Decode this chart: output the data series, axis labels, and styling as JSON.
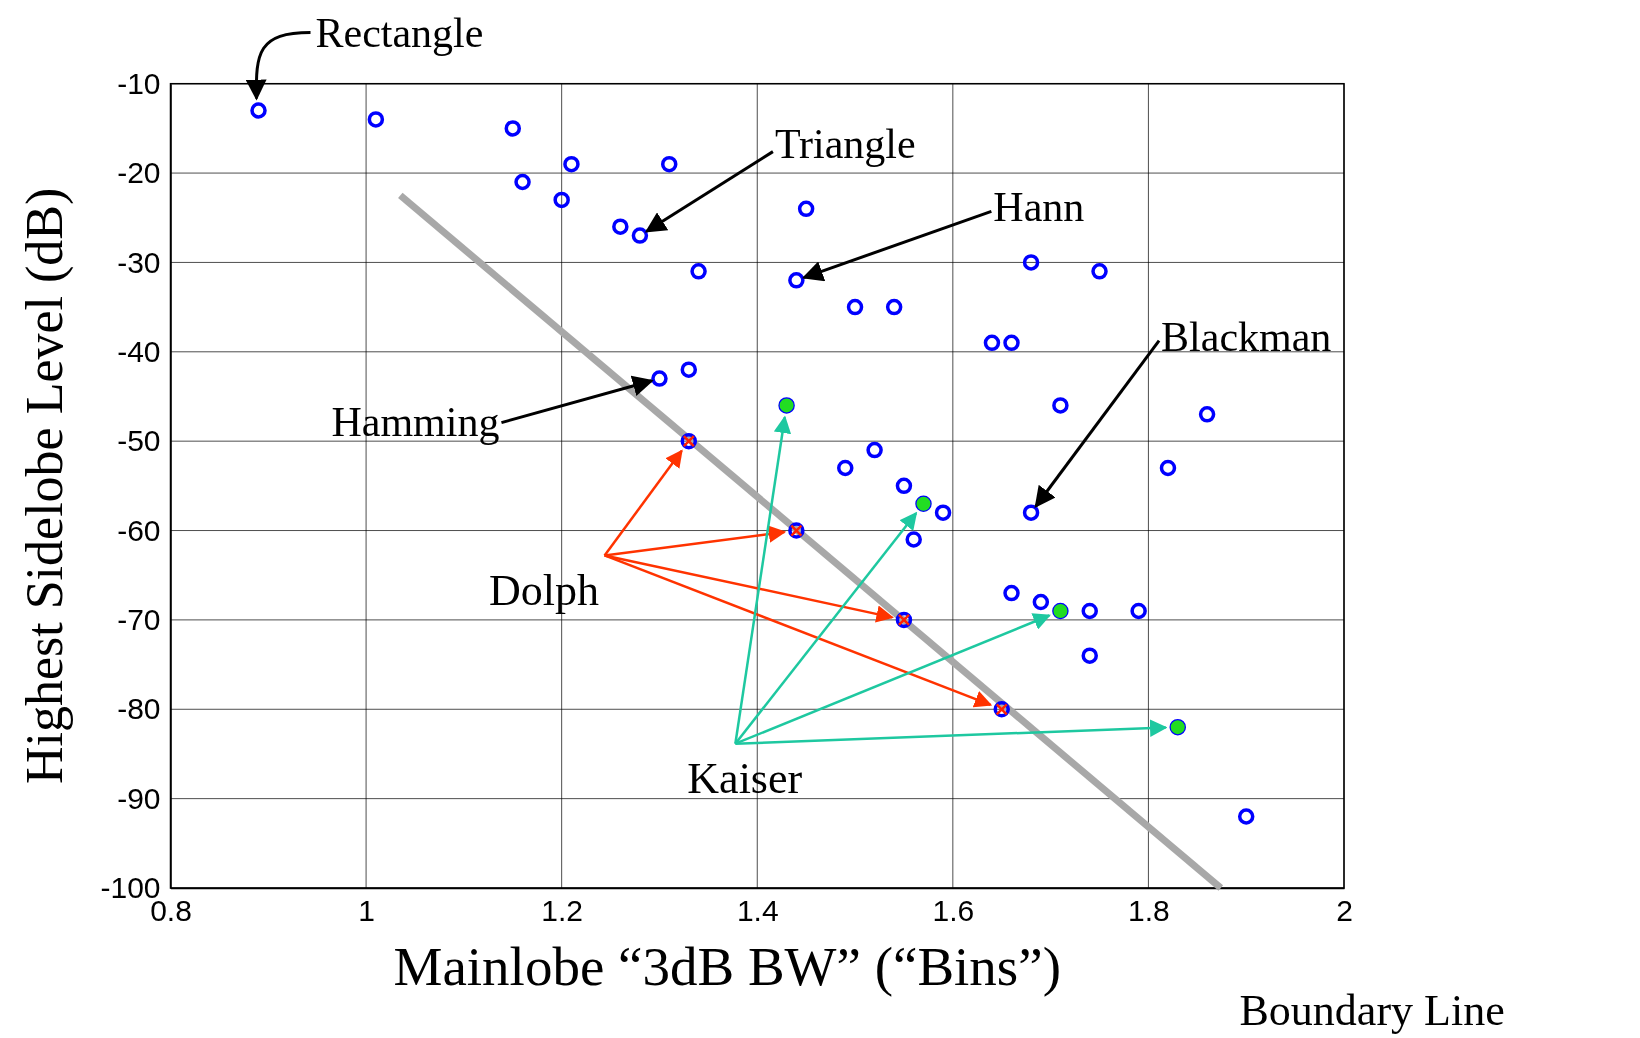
{
  "chart_data": {
    "type": "scatter",
    "xlabel": "Mainlobe “3dB BW” (“Bins”)",
    "ylabel": "Highest Sidelobe Level (dB)",
    "xlim": [
      0.8,
      2
    ],
    "ylim": [
      -100,
      -10
    ],
    "xticks": [
      0.8,
      1,
      1.2,
      1.4,
      1.6,
      1.8,
      2
    ],
    "yticks": [
      -10,
      -20,
      -30,
      -40,
      -50,
      -60,
      -70,
      -80,
      -90,
      -100
    ],
    "grid": true,
    "legend": false,
    "series": [
      {
        "marker": "circle",
        "color": "#0000ff",
        "x": [
          0.89,
          1.01,
          1.15,
          1.16,
          1.21,
          1.2,
          1.26,
          1.28,
          1.31,
          1.34,
          1.45,
          1.44,
          1.5,
          1.54,
          1.64,
          1.66,
          1.68,
          1.75,
          1.3,
          1.33,
          1.71,
          1.86,
          1.49,
          1.52,
          1.55,
          1.59,
          1.56,
          1.68,
          1.82,
          1.66,
          1.69,
          1.74,
          1.79,
          1.74,
          1.9,
          1.33,
          1.44,
          1.55,
          1.65,
          1.43,
          1.57,
          1.71,
          1.83
        ],
        "values": [
          -13,
          -14,
          -15,
          -21,
          -19,
          -23,
          -26,
          -27,
          -19,
          -31,
          -24,
          -32,
          -35,
          -35,
          -39,
          -39,
          -30,
          -31,
          -43,
          -42,
          -46,
          -47,
          -53,
          -51,
          -55,
          -58,
          -61,
          -58,
          -53,
          -67,
          -68,
          -69,
          -69,
          -74,
          -92,
          -50,
          -60,
          -70,
          -80,
          -46,
          -57,
          -69,
          -82
        ]
      },
      {
        "type": "scatter",
        "name": "Dolph",
        "marker": "cross",
        "color": "#ff2200",
        "x": [
          1.33,
          1.44,
          1.55,
          1.65
        ],
        "values": [
          -50,
          -60,
          -70,
          -80
        ]
      },
      {
        "type": "scatter",
        "name": "Kaiser",
        "marker": "circle",
        "color": "#22dd22",
        "x": [
          1.43,
          1.57,
          1.71,
          1.83
        ],
        "values": [
          -46,
          -57,
          -69,
          -82
        ]
      },
      {
        "type": "line",
        "name": "Boundary Line",
        "color": "#a8a8a8",
        "x": [
          1.035,
          1.874
        ],
        "values": [
          -22.5,
          -100
        ]
      }
    ],
    "annotations": [
      {
        "text": "Rectangle",
        "x": 0.89,
        "y": -13
      },
      {
        "text": "Triangle",
        "x": 1.28,
        "y": -27
      },
      {
        "text": "Hann",
        "x": 1.44,
        "y": -32
      },
      {
        "text": "Hamming",
        "x": 1.3,
        "y": -43
      },
      {
        "text": "Blackman",
        "x": 1.68,
        "y": -58
      }
    ]
  }
}
